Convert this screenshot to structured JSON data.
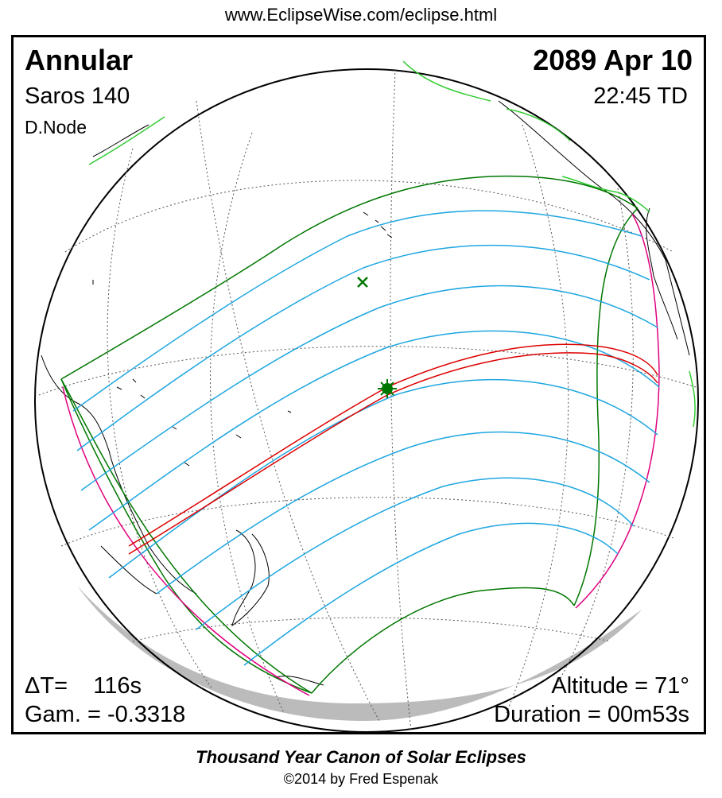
{
  "header": {
    "url": "www.EclipseWise.com/eclipse.html"
  },
  "eclipse": {
    "type": "Annular",
    "date": "2089 Apr 10",
    "saros": "Saros 140",
    "time": "22:45 TD",
    "node": "D.Node",
    "delta_t": "ΔT=    116s",
    "gamma": "Gam. = -0.3318",
    "altitude": "Altitude = 71°",
    "duration": "Duration = 00m53s"
  },
  "footer": {
    "canon": "Thousand Year Canon of Solar Eclipses",
    "copyright": "©2014 by Fred Espenak"
  },
  "colors": {
    "central_path": "#dd0000",
    "magnitude_lines": "#1ea6e0",
    "penumbra_limits": "#007700",
    "rise_set_curves": "#e0007f",
    "coastlines": "#000000",
    "coastline_highlight": "#33cc33",
    "night_shade": "#bbbbbb"
  }
}
